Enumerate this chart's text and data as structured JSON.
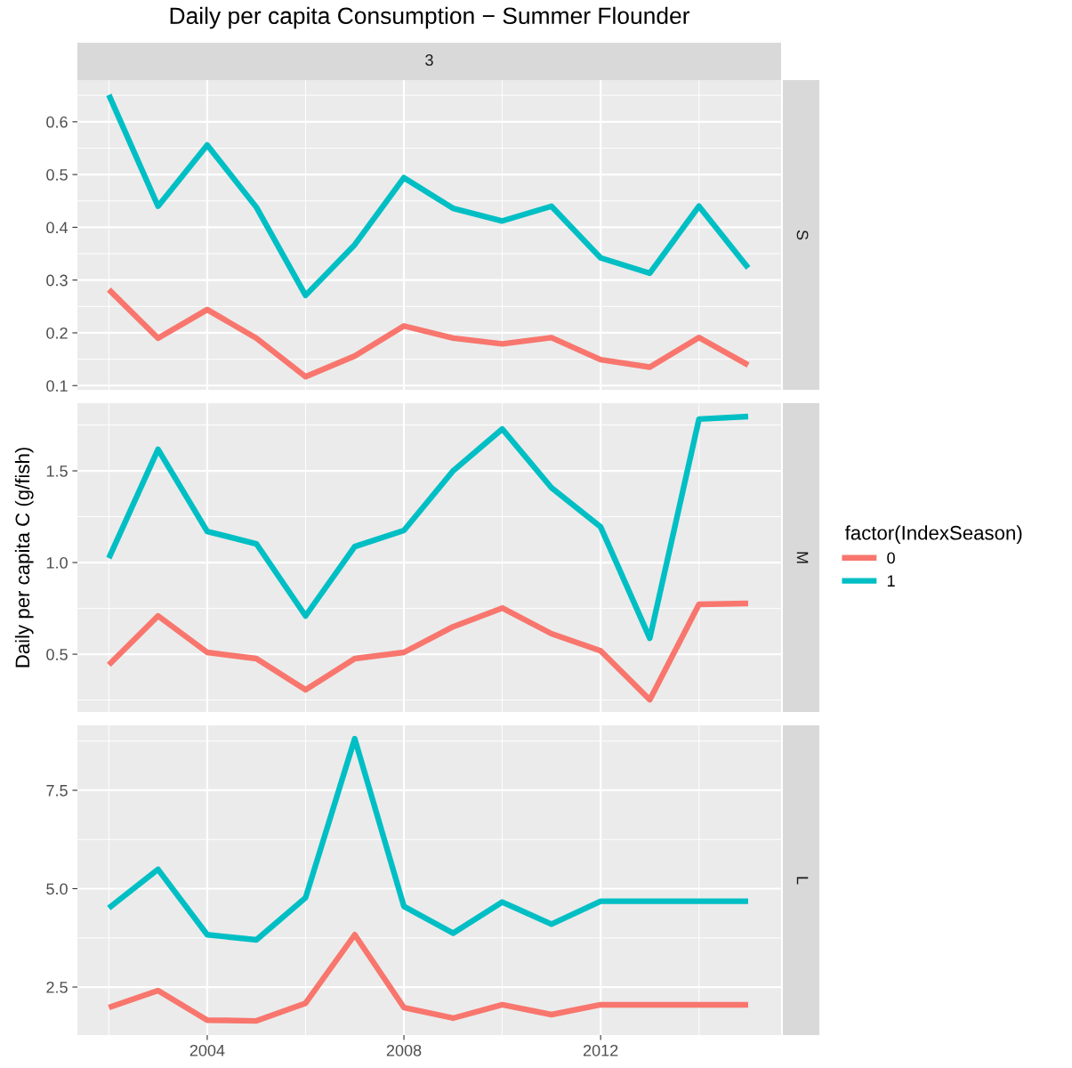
{
  "chart_data": [
    {
      "type": "line",
      "title": "Daily per capita Consumption − Summer Flounder",
      "subtitle": "3",
      "annotations": [
        "S"
      ],
      "x": [
        2002,
        2003,
        2004,
        2005,
        2006,
        2007,
        2008,
        2009,
        2010,
        2011,
        2012,
        2013,
        2014,
        2015
      ],
      "series": [
        {
          "color": "#f8766d",
          "values": [
            0.282,
            0.19,
            0.244,
            0.19,
            0.117,
            0.156,
            0.213,
            0.19,
            0.179,
            0.191,
            0.149,
            0.135,
            0.191,
            0.139
          ]
        },
        {
          "color": "#00bfc4",
          "values": [
            0.651,
            0.44,
            0.556,
            0.438,
            0.271,
            0.367,
            0.494,
            0.436,
            0.412,
            0.44,
            0.342,
            0.313,
            0.44,
            0.323
          ]
        }
      ],
      "xlim": [
        2001.36,
        2015.67
      ],
      "xticks": [
        2004,
        2008,
        2012
      ],
      "ylim": [
        0.092,
        0.679
      ],
      "yticks": [
        0.1,
        0.2,
        0.3,
        0.4,
        0.5,
        0.6
      ],
      "grid": true,
      "tick_labels": "y",
      "legend": false
    },
    {
      "type": "line",
      "ylabel": "Daily per capita C (g/fish)",
      "annotations": [
        "M"
      ],
      "legend_title": "factor(IndexSeason)",
      "x": [
        2002,
        2003,
        2004,
        2005,
        2006,
        2007,
        2008,
        2009,
        2010,
        2011,
        2012,
        2013,
        2014,
        2015
      ],
      "series": [
        {
          "name": "0",
          "color": "#f8766d",
          "values": [
            0.442,
            0.709,
            0.51,
            0.476,
            0.306,
            0.476,
            0.51,
            0.65,
            0.752,
            0.612,
            0.519,
            0.252,
            0.772,
            0.777
          ]
        },
        {
          "name": "1",
          "color": "#00bfc4",
          "values": [
            1.024,
            1.617,
            1.17,
            1.102,
            0.709,
            1.087,
            1.175,
            1.5,
            1.728,
            1.408,
            1.194,
            0.587,
            1.782,
            1.796
          ]
        }
      ],
      "xlim": [
        2001.36,
        2015.67
      ],
      "xticks": [
        2004,
        2008,
        2012
      ],
      "ylim": [
        0.185,
        1.869
      ],
      "yticks": [
        {
          "value": 0.5,
          "label": "0.5"
        },
        {
          "value": 1.0,
          "label": "1.0"
        },
        {
          "value": 1.5,
          "label": "1.5"
        }
      ],
      "grid": true,
      "tick_labels": "y",
      "legend": "right"
    },
    {
      "type": "line",
      "annotations": [
        "L"
      ],
      "x": [
        2002,
        2003,
        2004,
        2005,
        2006,
        2007,
        2008,
        2009,
        2010,
        2011,
        2012,
        2013,
        2014,
        2015
      ],
      "series": [
        {
          "color": "#f8766d",
          "values": [
            1.98,
            2.41,
            1.66,
            1.64,
            2.09,
            3.83,
            1.98,
            1.71,
            2.05,
            1.8,
            2.05,
            2.05,
            2.05,
            2.05
          ]
        },
        {
          "color": "#00bfc4",
          "values": [
            4.51,
            5.49,
            3.83,
            3.7,
            4.77,
            8.81,
            4.55,
            3.87,
            4.66,
            4.1,
            4.68,
            4.68,
            4.68,
            4.68
          ]
        }
      ],
      "xlim": [
        2001.36,
        2015.67
      ],
      "xticks": [
        2004,
        2008,
        2012
      ],
      "ylim": [
        1.28,
        9.15
      ],
      "yticks": [
        2.5,
        {
          "value": 5.0,
          "label": "5.0"
        },
        7.5
      ],
      "grid": true,
      "legend": false
    }
  ]
}
